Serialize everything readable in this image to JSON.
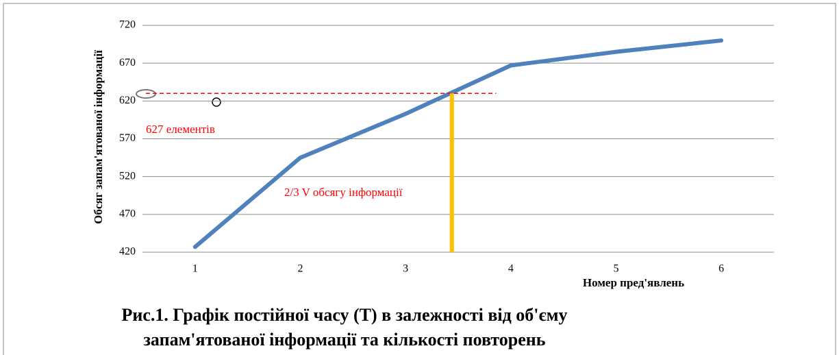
{
  "chart_data": {
    "type": "line",
    "title": "Рис.1. Графік постійної часу (Т) в залежності від об'єму",
    "subtitle": "запам'ятованої інформації та кількості повторень",
    "y_label": "Обсяг запам'ятованої інформації",
    "x_label": "Номер пред'явлень",
    "x": [
      1,
      2,
      3,
      4,
      5,
      6
    ],
    "xlim": [
      0.5,
      6.5
    ],
    "xticks": [
      1,
      2,
      3,
      4,
      5,
      6
    ],
    "series": [
      {
        "color": "#4f81bd",
        "values": [
          427,
          545,
          603,
          667,
          685,
          700
        ]
      }
    ],
    "ylim": [
      420,
      720
    ],
    "yticks": [
      420,
      470,
      520,
      570,
      620,
      670,
      720
    ],
    "grid": true,
    "hline": {
      "y": 630,
      "x_end": 3.86,
      "color": "#ff0000"
    },
    "vline": {
      "x": 3.44,
      "y_top": 630,
      "color": "#ffc000"
    },
    "annotations": [
      {
        "text": "627 елементів"
      },
      {
        "text": "2/3 V обсягу інформації"
      }
    ]
  }
}
